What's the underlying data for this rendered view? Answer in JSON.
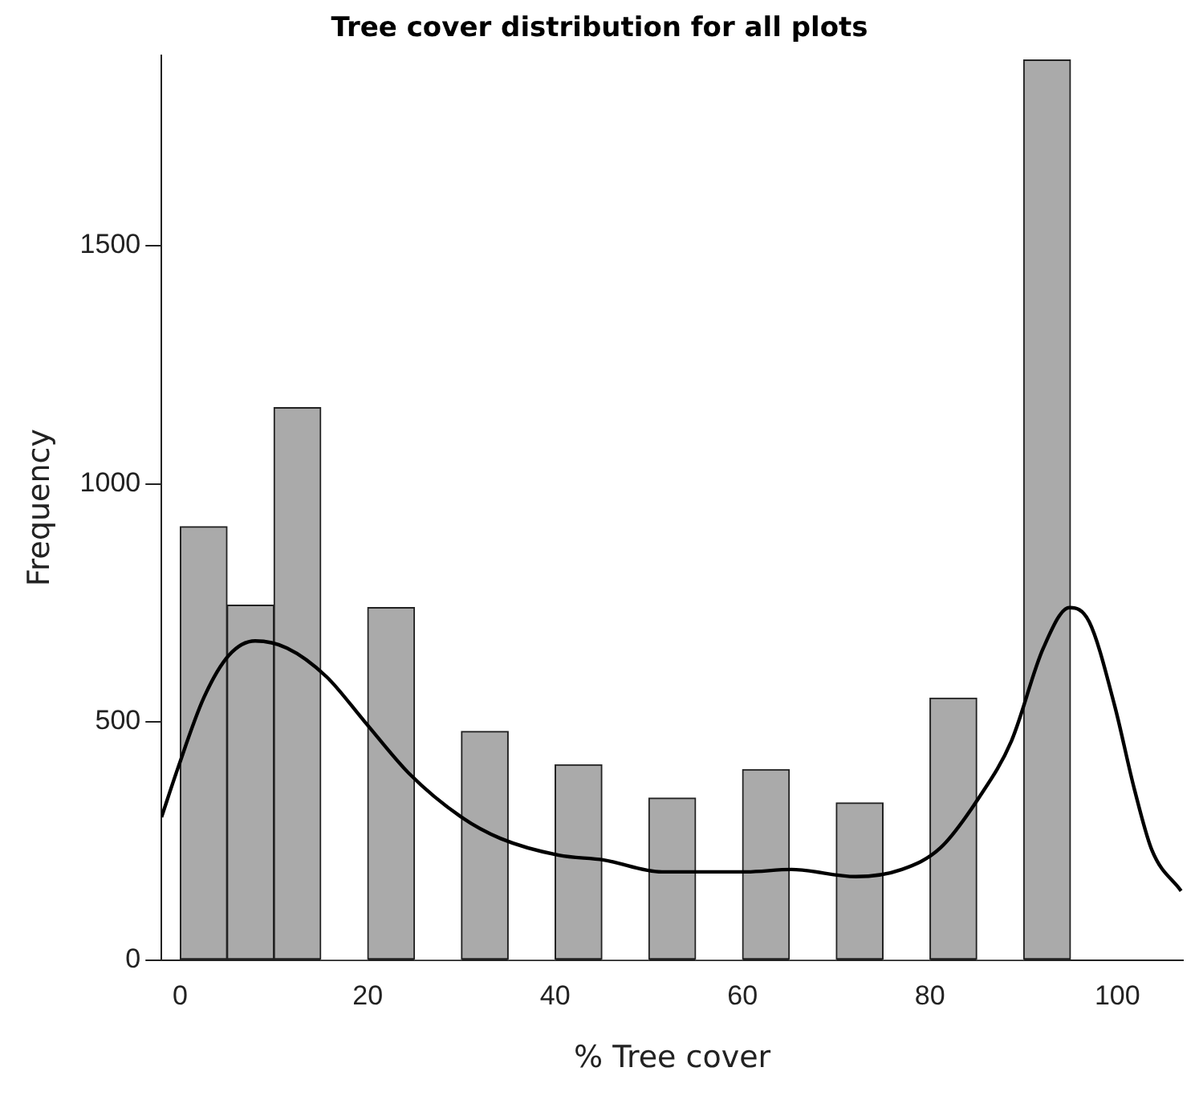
{
  "chart_data": {
    "type": "histogram",
    "title": "Tree cover distribution for all plots",
    "xlabel": "% Tree cover",
    "ylabel": "Frequency",
    "bins": [
      0,
      5,
      10,
      15,
      20,
      25,
      30,
      35,
      40,
      45,
      50,
      55,
      60,
      65,
      70,
      75,
      80,
      85,
      90,
      95
    ],
    "values": [
      910,
      745,
      1160,
      0,
      740,
      0,
      480,
      0,
      410,
      0,
      340,
      0,
      400,
      0,
      330,
      0,
      550,
      0,
      1890
    ],
    "color": "#aaaaaa",
    "series": [
      {
        "type": "line",
        "color": "#000000",
        "x": [
          -2,
          -0.3,
          2.5,
          5.2,
          8,
          11.4,
          15.6,
          19.7,
          24.5,
          30,
          34.2,
          40.4,
          45.2,
          51.4,
          60.4,
          65.2,
          72.1,
          77,
          81.1,
          85.2,
          88.7,
          92.1,
          94.9,
          97,
          99.7,
          101.8,
          103.7,
          106.8
        ],
        "values": [
          300,
          400,
          550,
          640,
          670,
          655,
          595,
          500,
          390,
          300,
          255,
          220,
          210,
          185,
          185,
          190,
          175,
          190,
          235,
          340,
          460,
          655,
          740,
          710,
          535,
          360,
          230,
          145
        ]
      }
    ],
    "xlim": [
      -2,
      107
    ],
    "ylim": [
      0,
      1900
    ],
    "xticks": [
      0,
      20,
      40,
      60,
      80,
      100
    ],
    "yticks": [
      0,
      500,
      1000,
      1500
    ],
    "grid": false,
    "legend": false,
    "marker": "none",
    "line_style": "solid"
  }
}
